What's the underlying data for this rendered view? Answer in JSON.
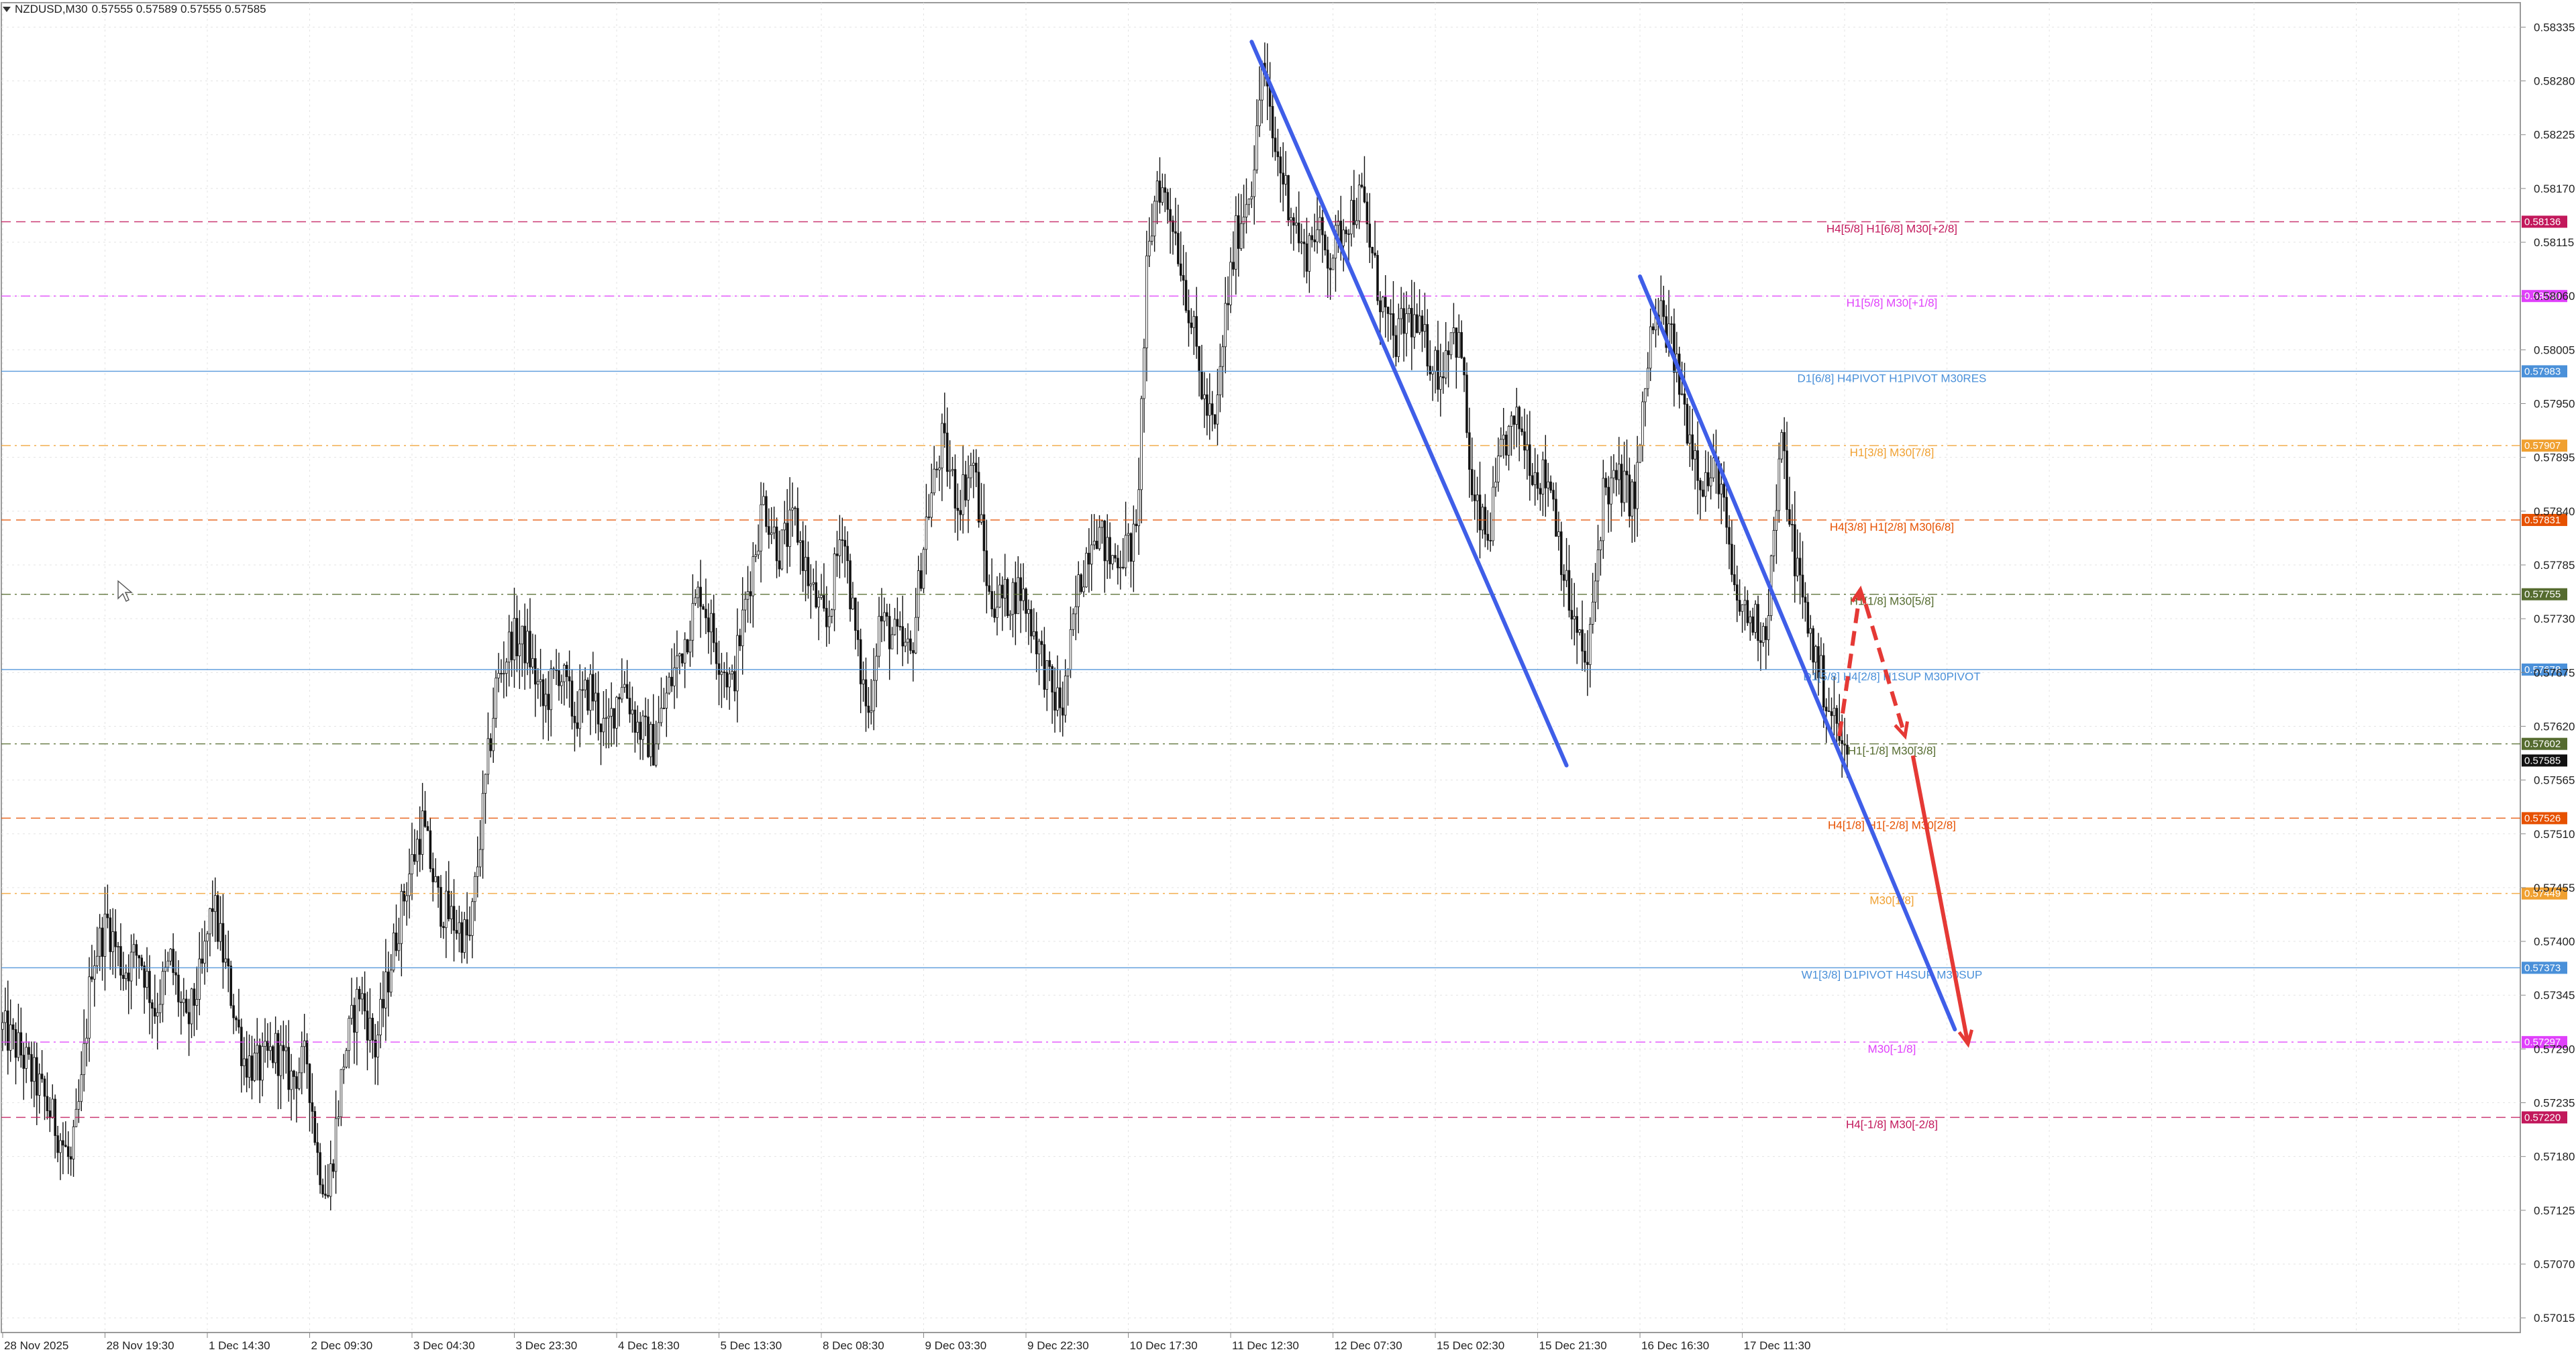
{
  "header": {
    "symbol": "NZDUSD,M30",
    "ohlc": "0.57555 0.57589 0.57555 0.57585"
  },
  "chart_data": {
    "type": "candlestick",
    "symbol": "NZDUSD",
    "timeframe": "M30",
    "grid": true,
    "ylim": [
      0.57,
      0.5836
    ],
    "y_ticks": [
      "0.58335",
      "0.58280",
      "0.58225",
      "0.58170",
      "0.58115",
      "0.58060",
      "0.58005",
      "0.57950",
      "0.57895",
      "0.57840",
      "0.57785",
      "0.57730",
      "0.57675",
      "0.57620",
      "0.57565",
      "0.57510",
      "0.57455",
      "0.57400",
      "0.57345",
      "0.57290",
      "0.57235",
      "0.57180",
      "0.57125",
      "0.57070",
      "0.57015"
    ],
    "x_ticks": [
      "28 Nov 2025",
      "28 Nov 19:30",
      "1 Dec 14:30",
      "2 Dec 09:30",
      "3 Dec 04:30",
      "3 Dec 23:30",
      "4 Dec 18:30",
      "5 Dec 13:30",
      "8 Dec 08:30",
      "9 Dec 03:30",
      "9 Dec 22:30",
      "10 Dec 17:30",
      "11 Dec 12:30",
      "12 Dec 07:30",
      "15 Dec 02:30",
      "15 Dec 21:30",
      "16 Dec 16:30",
      "17 Dec 11:30"
    ],
    "x_tick_index": [
      0,
      39,
      78,
      117,
      156,
      195,
      234,
      273,
      312,
      351,
      390,
      429,
      468,
      507,
      546,
      585,
      624,
      663
    ],
    "total_bars_visible": 960,
    "last_price": "0.57585",
    "price_path": [
      [
        0,
        0.5731
      ],
      [
        6,
        0.5729
      ],
      [
        14,
        0.5725
      ],
      [
        22,
        0.572
      ],
      [
        26,
        0.5717
      ],
      [
        30,
        0.5725
      ],
      [
        34,
        0.5738
      ],
      [
        40,
        0.5742
      ],
      [
        46,
        0.5737
      ],
      [
        52,
        0.5739
      ],
      [
        58,
        0.5733
      ],
      [
        64,
        0.5738
      ],
      [
        70,
        0.5731
      ],
      [
        76,
        0.5737
      ],
      [
        80,
        0.5744
      ],
      [
        86,
        0.5736
      ],
      [
        92,
        0.5728
      ],
      [
        98,
        0.5727
      ],
      [
        104,
        0.5729
      ],
      [
        110,
        0.5726
      ],
      [
        116,
        0.5728
      ],
      [
        120,
        0.5718
      ],
      [
        124,
        0.5714
      ],
      [
        130,
        0.5728
      ],
      [
        136,
        0.5735
      ],
      [
        142,
        0.5729
      ],
      [
        148,
        0.5738
      ],
      [
        154,
        0.5746
      ],
      [
        160,
        0.5752
      ],
      [
        166,
        0.5744
      ],
      [
        172,
        0.5742
      ],
      [
        178,
        0.574
      ],
      [
        184,
        0.5756
      ],
      [
        188,
        0.5766
      ],
      [
        194,
        0.5771
      ],
      [
        200,
        0.577
      ],
      [
        206,
        0.5764
      ],
      [
        212,
        0.5768
      ],
      [
        218,
        0.5763
      ],
      [
        224,
        0.5766
      ],
      [
        230,
        0.5761
      ],
      [
        236,
        0.5767
      ],
      [
        242,
        0.5762
      ],
      [
        248,
        0.576
      ],
      [
        254,
        0.5766
      ],
      [
        260,
        0.5771
      ],
      [
        266,
        0.5776
      ],
      [
        272,
        0.577
      ],
      [
        278,
        0.5766
      ],
      [
        284,
        0.5776
      ],
      [
        290,
        0.5785
      ],
      [
        296,
        0.578
      ],
      [
        302,
        0.5783
      ],
      [
        308,
        0.5776
      ],
      [
        314,
        0.5772
      ],
      [
        320,
        0.5783
      ],
      [
        326,
        0.5769
      ],
      [
        330,
        0.5763
      ],
      [
        334,
        0.5773
      ],
      [
        340,
        0.5771
      ],
      [
        346,
        0.5769
      ],
      [
        352,
        0.5783
      ],
      [
        358,
        0.5791
      ],
      [
        364,
        0.5785
      ],
      [
        370,
        0.5789
      ],
      [
        376,
        0.5775
      ],
      [
        382,
        0.5775
      ],
      [
        388,
        0.5776
      ],
      [
        394,
        0.5771
      ],
      [
        400,
        0.5765
      ],
      [
        404,
        0.5764
      ],
      [
        410,
        0.5776
      ],
      [
        416,
        0.5783
      ],
      [
        422,
        0.5779
      ],
      [
        428,
        0.578
      ],
      [
        432,
        0.5781
      ],
      [
        436,
        0.5808
      ],
      [
        440,
        0.5818
      ],
      [
        446,
        0.5814
      ],
      [
        452,
        0.5805
      ],
      [
        458,
        0.5795
      ],
      [
        462,
        0.5792
      ],
      [
        466,
        0.5804
      ],
      [
        470,
        0.5812
      ],
      [
        476,
        0.5818
      ],
      [
        478,
        0.5822
      ],
      [
        480,
        0.583
      ],
      [
        484,
        0.5822
      ],
      [
        490,
        0.5816
      ],
      [
        496,
        0.581
      ],
      [
        500,
        0.5813
      ],
      [
        506,
        0.581
      ],
      [
        512,
        0.5814
      ],
      [
        518,
        0.5816
      ],
      [
        524,
        0.5807
      ],
      [
        530,
        0.5801
      ],
      [
        536,
        0.5804
      ],
      [
        542,
        0.5801
      ],
      [
        548,
        0.5798
      ],
      [
        552,
        0.5803
      ],
      [
        556,
        0.58
      ],
      [
        560,
        0.5785
      ],
      [
        566,
        0.5781
      ],
      [
        572,
        0.5791
      ],
      [
        578,
        0.5793
      ],
      [
        584,
        0.5788
      ],
      [
        590,
        0.5787
      ],
      [
        596,
        0.5776
      ],
      [
        600,
        0.5771
      ],
      [
        604,
        0.5768
      ],
      [
        610,
        0.5786
      ],
      [
        616,
        0.5787
      ],
      [
        622,
        0.5785
      ],
      [
        628,
        0.5802
      ],
      [
        632,
        0.5804
      ],
      [
        636,
        0.5801
      ],
      [
        642,
        0.5793
      ],
      [
        648,
        0.5787
      ],
      [
        654,
        0.5788
      ],
      [
        660,
        0.5775
      ],
      [
        666,
        0.5773
      ],
      [
        672,
        0.5772
      ],
      [
        678,
        0.5791
      ],
      [
        682,
        0.5781
      ],
      [
        686,
        0.5775
      ],
      [
        690,
        0.577
      ],
      [
        696,
        0.5764
      ],
      [
        700,
        0.5761
      ],
      [
        703,
        0.5758
      ]
    ],
    "levels": [
      {
        "price": 0.58136,
        "tag": "0.58136",
        "label": "H4[5/8] H1[6/8] M30[+2/8]",
        "color": "#c2185b",
        "dash": "dash"
      },
      {
        "price": 0.5806,
        "tag": "0.58060",
        "label": "H1[5/8] M30[+1/8]",
        "color": "#e040fb",
        "dash": "dashdot"
      },
      {
        "price": 0.57983,
        "tag": "0.57983",
        "label": "D1[6/8] H4PIVOT H1PIVOT M30RES",
        "color": "#4a90d9",
        "dash": "solid"
      },
      {
        "price": 0.57907,
        "tag": "0.57907",
        "label": "H1[3/8] M30[7/8]",
        "color": "#f0a030",
        "dash": "dashdot"
      },
      {
        "price": 0.57831,
        "tag": "0.57831",
        "label": "H4[3/8] H1[2/8] M30[6/8]",
        "color": "#e65100",
        "dash": "dash"
      },
      {
        "price": 0.57755,
        "tag": "0.57755",
        "label": "H1[1/8] M30[5/8]",
        "color": "#556b2f",
        "dash": "dashdot"
      },
      {
        "price": 0.57678,
        "tag": "0.57678",
        "label": "D1[5/8] H4[2/8] H1SUP M30PIVOT",
        "color": "#4a90d9",
        "dash": "solid"
      },
      {
        "price": 0.57602,
        "tag": "0.57602",
        "label": "H1[-1/8] M30[3/8]",
        "color": "#556b2f",
        "dash": "dashdot"
      },
      {
        "price": 0.57526,
        "tag": "0.57526",
        "label": "H4[1/8] H1[-2/8] M30[2/8]",
        "color": "#e65100",
        "dash": "dash"
      },
      {
        "price": 0.57449,
        "tag": "0.57449",
        "label": "M30[1/8]",
        "color": "#f0a030",
        "dash": "dashdot"
      },
      {
        "price": 0.57373,
        "tag": "0.57373",
        "label": "W1[3/8] D1PIVOT H4SUP M30SUP",
        "color": "#4a90d9",
        "dash": "solid"
      },
      {
        "price": 0.57297,
        "tag": "0.57297",
        "label": "M30[-1/8]",
        "color": "#e040fb",
        "dash": "dashdot"
      },
      {
        "price": 0.5722,
        "tag": "0.57220",
        "label": "H4[-1/8] M30[-2/8]",
        "color": "#c2185b",
        "dash": "dash"
      }
    ],
    "trendlines": [
      {
        "color": "#3f5ee8",
        "from": [
          476,
          0.5832
        ],
        "to": [
          596,
          0.5758
        ]
      },
      {
        "color": "#3f5ee8",
        "from": [
          624,
          0.5808
        ],
        "to": [
          744,
          0.5731
        ]
      }
    ],
    "arrows": [
      {
        "color": "#e53935",
        "style": "dashed",
        "from": [
          700,
          0.5761
        ],
        "to": [
          708,
          0.5776
        ]
      },
      {
        "color": "#e53935",
        "style": "dashed",
        "from": [
          710,
          0.57745
        ],
        "to": [
          725,
          0.5761
        ]
      },
      {
        "color": "#e53935",
        "style": "solid",
        "from": [
          728,
          0.5759
        ],
        "to": [
          749,
          0.57295
        ]
      }
    ],
    "cursor_icon": "mouse-pointer-icon"
  }
}
